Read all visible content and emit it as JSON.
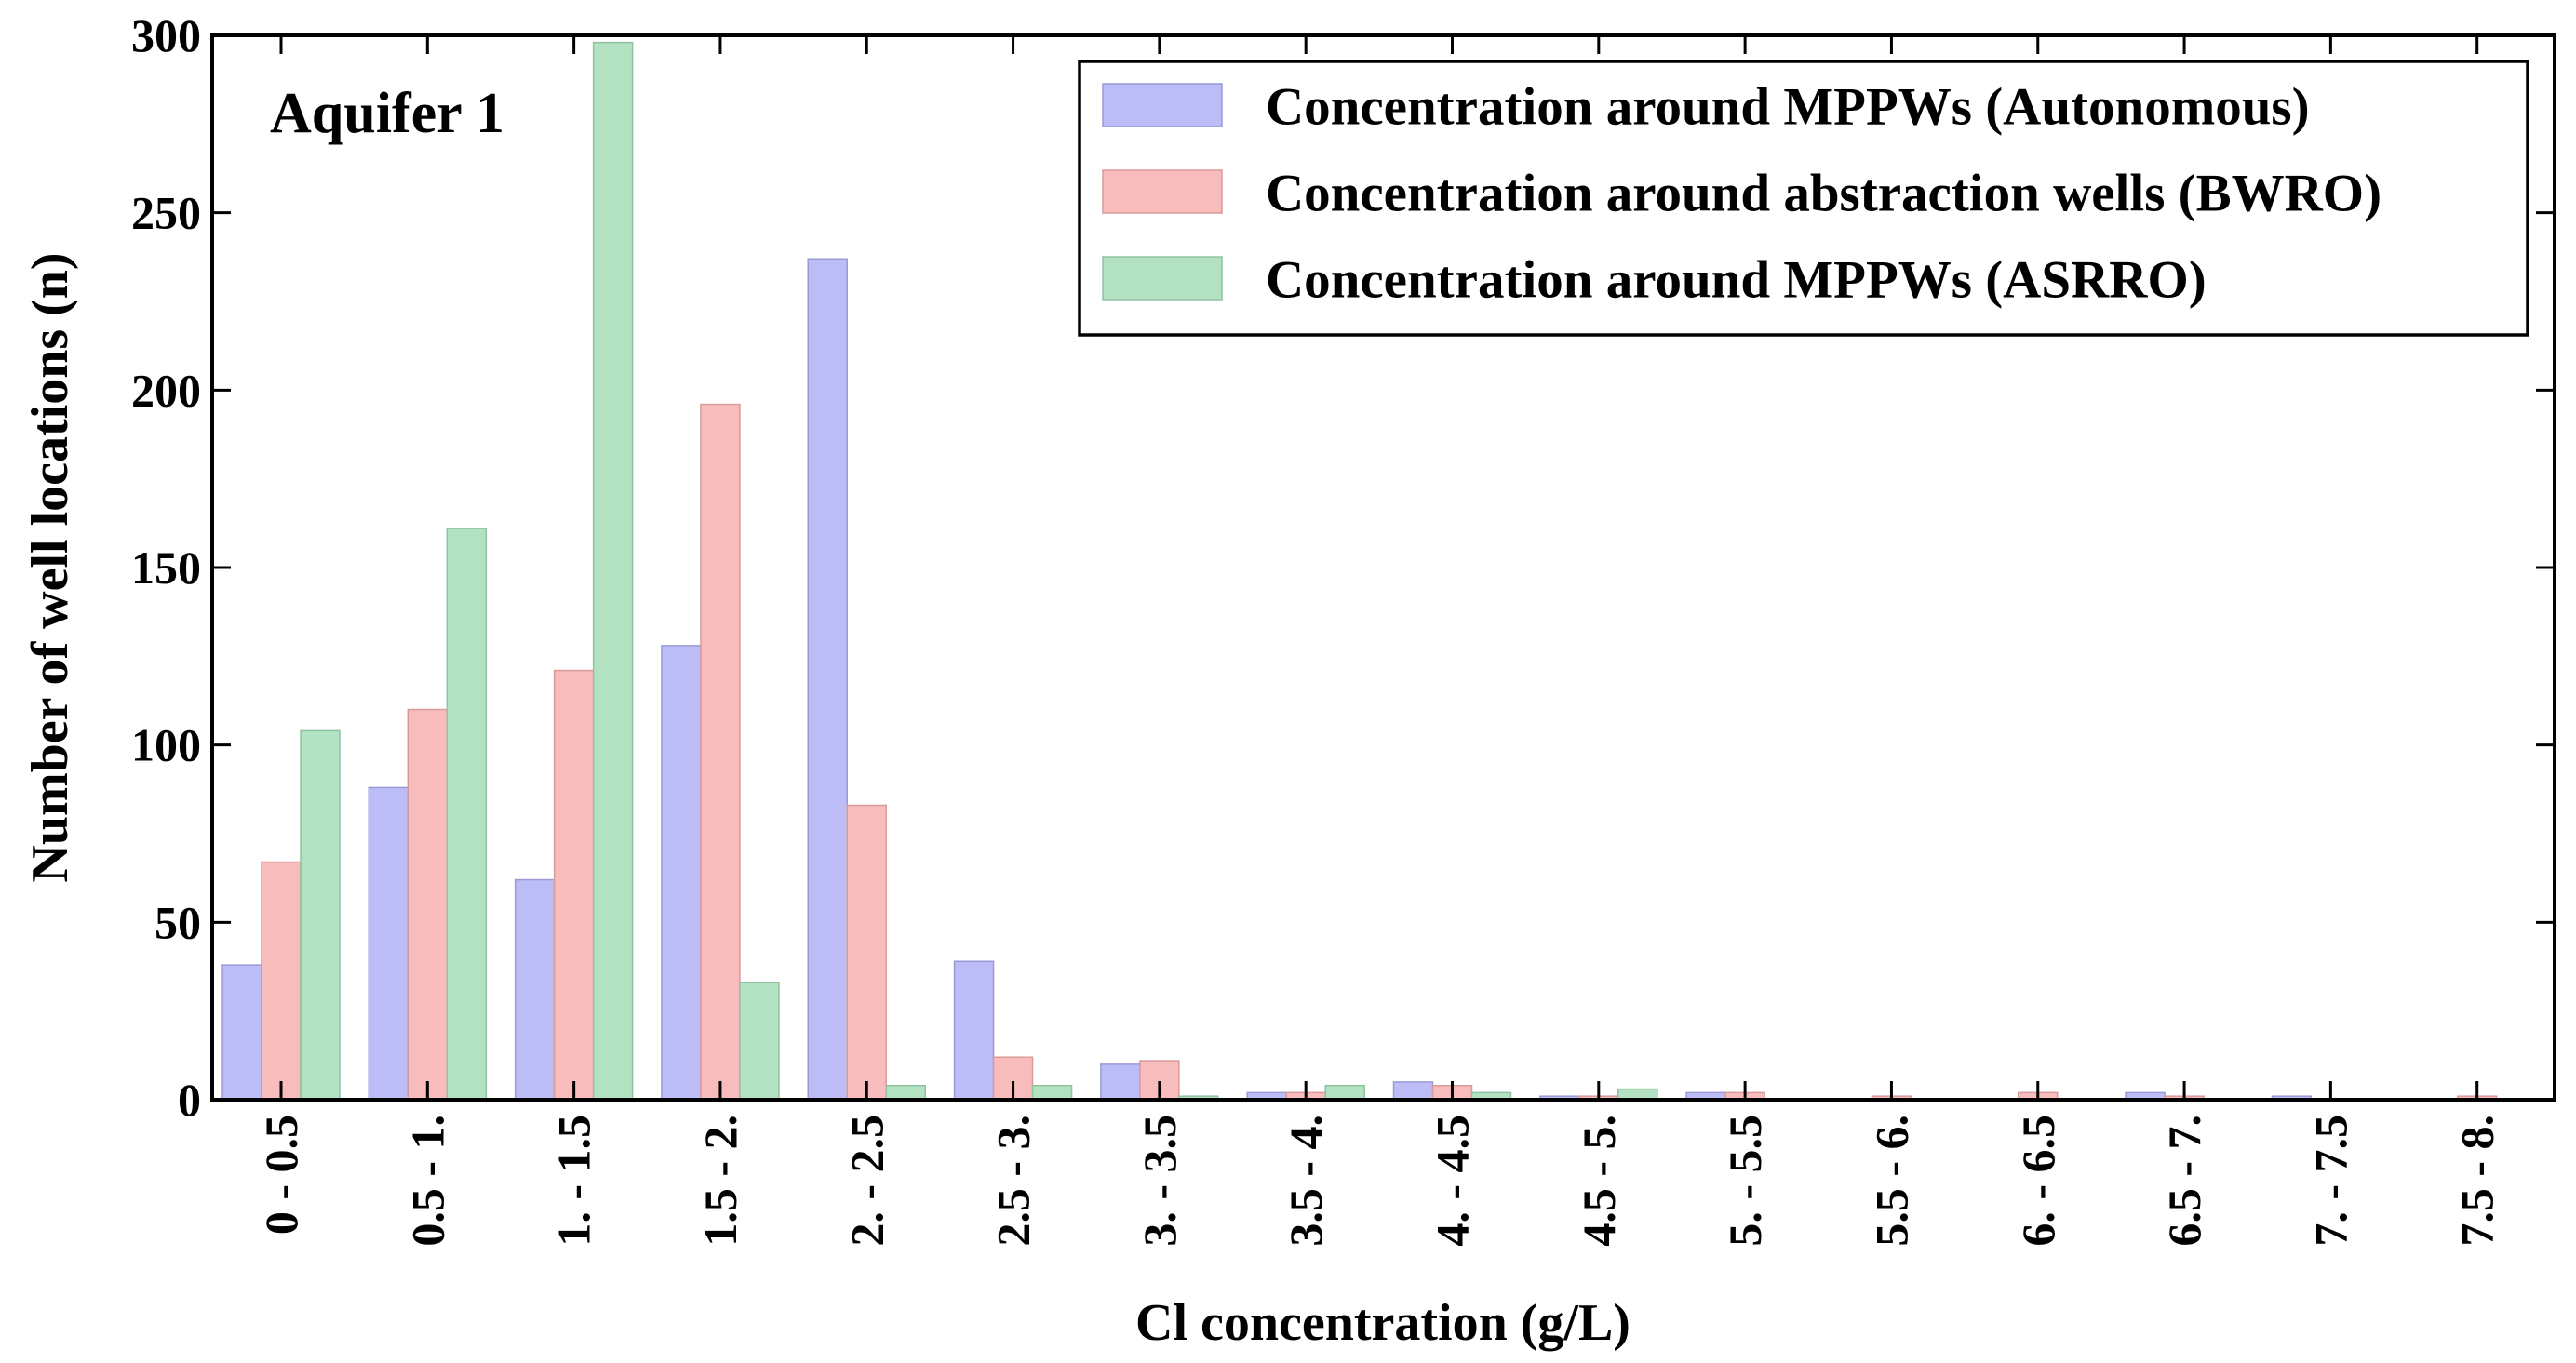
{
  "chart_data": {
    "type": "bar",
    "annotation": "Aquifer 1",
    "xlabel": "Cl concentration (g/L)",
    "ylabel": "Number of well locations (n)",
    "ylim": [
      0,
      300
    ],
    "yticks": [
      "0",
      "50",
      "100",
      "150",
      "200",
      "250",
      "300"
    ],
    "ytick_values": [
      0,
      50,
      100,
      150,
      200,
      250,
      300
    ],
    "categories": [
      "0 - 0.5",
      "0.5 - 1.",
      "1. - 1.5",
      "1.5 - 2.",
      "2. - 2.5",
      "2.5 - 3.",
      "3. - 3.5",
      "3.5 - 4.",
      "4. - 4.5",
      "4.5 - 5.",
      "5. - 5.5",
      "5.5 - 6.",
      "6. - 6.5",
      "6.5 - 7.",
      "7. - 7.5",
      "7.5 - 8."
    ],
    "legend_position": "top-right",
    "grid": false,
    "series": [
      {
        "name": "Concentration around MPPWs (Autonomous)",
        "color": "#bcbcf7",
        "edge": "#9a9ad6",
        "values": [
          38,
          88,
          62,
          128,
          237,
          39,
          10,
          2,
          5,
          1,
          2,
          0,
          0,
          2,
          1,
          0
        ]
      },
      {
        "name": "Concentration around abstraction wells (BWRO)",
        "color": "#f9bcbc",
        "edge": "#d99a9a",
        "values": [
          67,
          110,
          121,
          196,
          83,
          12,
          11,
          2,
          4,
          1,
          2,
          1,
          2,
          1,
          0,
          1
        ]
      },
      {
        "name": "Concentration around MPPWs (ASRRO)",
        "color": "#b3e2c2",
        "edge": "#8fc2a0",
        "values": [
          104,
          161,
          298,
          33,
          4,
          4,
          1,
          4,
          2,
          3,
          0,
          0,
          0,
          0,
          0,
          0
        ]
      }
    ]
  }
}
